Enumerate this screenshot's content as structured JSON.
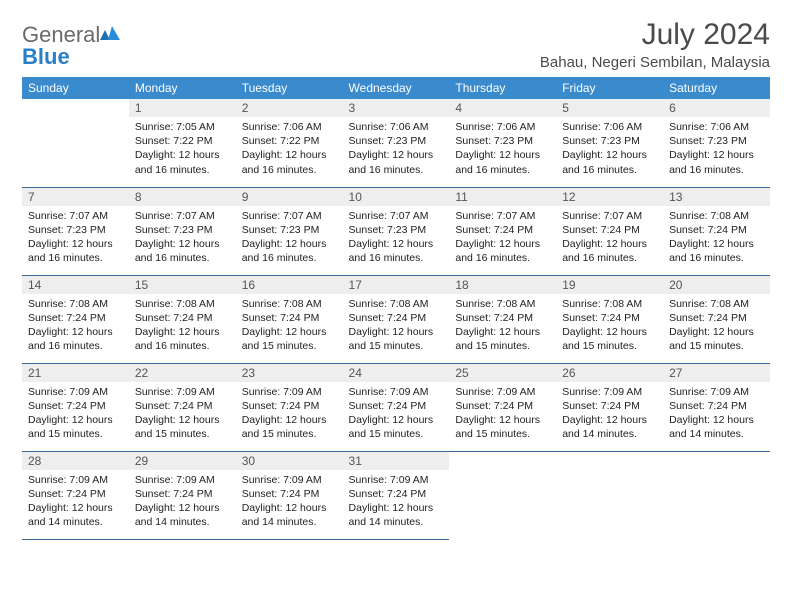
{
  "brand": {
    "general": "General",
    "blue": "Blue"
  },
  "title": "July 2024",
  "location": "Bahau, Negeri Sembilan, Malaysia",
  "colors": {
    "header_bg": "#3a8bce",
    "header_text": "#ffffff",
    "daynum_bg": "#eeeeee",
    "row_border": "#3a6a9a",
    "logo_gray": "#6a6a6a",
    "logo_blue": "#2a7fc9"
  },
  "weekdays": [
    "Sunday",
    "Monday",
    "Tuesday",
    "Wednesday",
    "Thursday",
    "Friday",
    "Saturday"
  ],
  "weeks": [
    [
      null,
      {
        "n": "1",
        "sr": "7:05 AM",
        "ss": "7:22 PM",
        "dl": "12 hours and 16 minutes."
      },
      {
        "n": "2",
        "sr": "7:06 AM",
        "ss": "7:22 PM",
        "dl": "12 hours and 16 minutes."
      },
      {
        "n": "3",
        "sr": "7:06 AM",
        "ss": "7:23 PM",
        "dl": "12 hours and 16 minutes."
      },
      {
        "n": "4",
        "sr": "7:06 AM",
        "ss": "7:23 PM",
        "dl": "12 hours and 16 minutes."
      },
      {
        "n": "5",
        "sr": "7:06 AM",
        "ss": "7:23 PM",
        "dl": "12 hours and 16 minutes."
      },
      {
        "n": "6",
        "sr": "7:06 AM",
        "ss": "7:23 PM",
        "dl": "12 hours and 16 minutes."
      }
    ],
    [
      {
        "n": "7",
        "sr": "7:07 AM",
        "ss": "7:23 PM",
        "dl": "12 hours and 16 minutes."
      },
      {
        "n": "8",
        "sr": "7:07 AM",
        "ss": "7:23 PM",
        "dl": "12 hours and 16 minutes."
      },
      {
        "n": "9",
        "sr": "7:07 AM",
        "ss": "7:23 PM",
        "dl": "12 hours and 16 minutes."
      },
      {
        "n": "10",
        "sr": "7:07 AM",
        "ss": "7:23 PM",
        "dl": "12 hours and 16 minutes."
      },
      {
        "n": "11",
        "sr": "7:07 AM",
        "ss": "7:24 PM",
        "dl": "12 hours and 16 minutes."
      },
      {
        "n": "12",
        "sr": "7:07 AM",
        "ss": "7:24 PM",
        "dl": "12 hours and 16 minutes."
      },
      {
        "n": "13",
        "sr": "7:08 AM",
        "ss": "7:24 PM",
        "dl": "12 hours and 16 minutes."
      }
    ],
    [
      {
        "n": "14",
        "sr": "7:08 AM",
        "ss": "7:24 PM",
        "dl": "12 hours and 16 minutes."
      },
      {
        "n": "15",
        "sr": "7:08 AM",
        "ss": "7:24 PM",
        "dl": "12 hours and 16 minutes."
      },
      {
        "n": "16",
        "sr": "7:08 AM",
        "ss": "7:24 PM",
        "dl": "12 hours and 15 minutes."
      },
      {
        "n": "17",
        "sr": "7:08 AM",
        "ss": "7:24 PM",
        "dl": "12 hours and 15 minutes."
      },
      {
        "n": "18",
        "sr": "7:08 AM",
        "ss": "7:24 PM",
        "dl": "12 hours and 15 minutes."
      },
      {
        "n": "19",
        "sr": "7:08 AM",
        "ss": "7:24 PM",
        "dl": "12 hours and 15 minutes."
      },
      {
        "n": "20",
        "sr": "7:08 AM",
        "ss": "7:24 PM",
        "dl": "12 hours and 15 minutes."
      }
    ],
    [
      {
        "n": "21",
        "sr": "7:09 AM",
        "ss": "7:24 PM",
        "dl": "12 hours and 15 minutes."
      },
      {
        "n": "22",
        "sr": "7:09 AM",
        "ss": "7:24 PM",
        "dl": "12 hours and 15 minutes."
      },
      {
        "n": "23",
        "sr": "7:09 AM",
        "ss": "7:24 PM",
        "dl": "12 hours and 15 minutes."
      },
      {
        "n": "24",
        "sr": "7:09 AM",
        "ss": "7:24 PM",
        "dl": "12 hours and 15 minutes."
      },
      {
        "n": "25",
        "sr": "7:09 AM",
        "ss": "7:24 PM",
        "dl": "12 hours and 15 minutes."
      },
      {
        "n": "26",
        "sr": "7:09 AM",
        "ss": "7:24 PM",
        "dl": "12 hours and 14 minutes."
      },
      {
        "n": "27",
        "sr": "7:09 AM",
        "ss": "7:24 PM",
        "dl": "12 hours and 14 minutes."
      }
    ],
    [
      {
        "n": "28",
        "sr": "7:09 AM",
        "ss": "7:24 PM",
        "dl": "12 hours and 14 minutes."
      },
      {
        "n": "29",
        "sr": "7:09 AM",
        "ss": "7:24 PM",
        "dl": "12 hours and 14 minutes."
      },
      {
        "n": "30",
        "sr": "7:09 AM",
        "ss": "7:24 PM",
        "dl": "12 hours and 14 minutes."
      },
      {
        "n": "31",
        "sr": "7:09 AM",
        "ss": "7:24 PM",
        "dl": "12 hours and 14 minutes."
      },
      null,
      null,
      null
    ]
  ],
  "labels": {
    "sunrise": "Sunrise: ",
    "sunset": "Sunset: ",
    "daylight": "Daylight: "
  }
}
